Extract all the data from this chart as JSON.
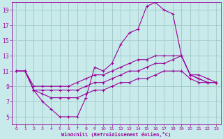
{
  "xlabel": "Windchill (Refroidissement éolien,°C)",
  "xlim": [
    -0.5,
    23.5
  ],
  "ylim": [
    4,
    20
  ],
  "yticks": [
    5,
    7,
    9,
    11,
    13,
    15,
    17,
    19
  ],
  "xticks": [
    0,
    1,
    2,
    3,
    4,
    5,
    6,
    7,
    8,
    9,
    10,
    11,
    12,
    13,
    14,
    15,
    16,
    17,
    18,
    19,
    20,
    21,
    22,
    23
  ],
  "bg_color": "#c8eaea",
  "line_color": "#990099",
  "grid_color": "#a0c8c8",
  "curves": [
    {
      "x": [
        0,
        1,
        2,
        3,
        4,
        5,
        6,
        7,
        8,
        9,
        10,
        11,
        12,
        13,
        14,
        15,
        16,
        17,
        18,
        19,
        20,
        21,
        22,
        23
      ],
      "y": [
        11.0,
        11.0,
        8.5,
        7.0,
        6.0,
        5.0,
        5.0,
        5.0,
        7.5,
        11.5,
        11.0,
        12.0,
        14.5,
        16.0,
        16.5,
        19.5,
        20.0,
        19.0,
        18.5,
        13.0,
        10.5,
        10.0,
        9.5,
        9.5
      ]
    },
    {
      "x": [
        0,
        1,
        2,
        3,
        4,
        5,
        6,
        7,
        8,
        9,
        10,
        11,
        12,
        13,
        14,
        15,
        16,
        17,
        18,
        19,
        20,
        21,
        22,
        23
      ],
      "y": [
        11.0,
        11.0,
        9.0,
        9.0,
        9.0,
        9.0,
        9.0,
        9.5,
        10.0,
        10.5,
        10.5,
        11.0,
        11.5,
        12.0,
        12.5,
        12.5,
        13.0,
        13.0,
        13.0,
        13.0,
        10.5,
        10.5,
        10.0,
        9.5
      ]
    },
    {
      "x": [
        0,
        1,
        2,
        3,
        4,
        5,
        6,
        7,
        8,
        9,
        10,
        11,
        12,
        13,
        14,
        15,
        16,
        17,
        18,
        19,
        20,
        21,
        22,
        23
      ],
      "y": [
        11.0,
        11.0,
        8.5,
        8.5,
        8.5,
        8.5,
        8.5,
        8.5,
        9.0,
        9.5,
        9.5,
        10.0,
        10.5,
        11.0,
        11.0,
        11.5,
        12.0,
        12.0,
        12.5,
        13.0,
        10.5,
        10.0,
        9.5,
        9.5
      ]
    },
    {
      "x": [
        1,
        2,
        3,
        4,
        5,
        6,
        7,
        8,
        9,
        10,
        11,
        12,
        13,
        14,
        15,
        16,
        17,
        18,
        19,
        20,
        21,
        22,
        23
      ],
      "y": [
        11.0,
        8.5,
        8.0,
        7.5,
        7.5,
        7.5,
        7.5,
        8.0,
        8.5,
        8.5,
        9.0,
        9.5,
        9.5,
        10.0,
        10.0,
        10.5,
        11.0,
        11.0,
        11.0,
        10.0,
        9.5,
        9.5,
        9.5
      ]
    }
  ]
}
